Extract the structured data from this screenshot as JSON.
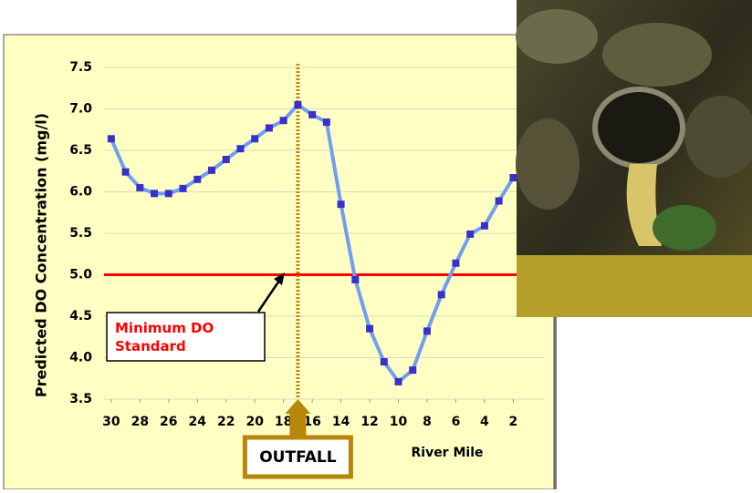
{
  "chart_data": {
    "type": "line",
    "ylabel": "Predicted DO Concentration (mg/l)",
    "xlabel": "River Mile",
    "x": [
      30,
      29,
      28,
      27,
      26,
      25,
      24,
      23,
      22,
      21,
      20,
      19,
      18,
      17,
      16,
      15,
      14,
      13,
      12,
      11,
      10,
      9,
      8,
      7,
      6,
      5,
      4,
      3,
      2
    ],
    "series": [
      {
        "color": "#6f9ff0",
        "marker_color": "#3b2fc9",
        "values": [
          6.64,
          6.24,
          6.05,
          5.98,
          5.98,
          6.04,
          6.15,
          6.26,
          6.39,
          6.52,
          6.64,
          6.77,
          6.86,
          7.05,
          6.93,
          6.84,
          5.85,
          4.94,
          4.35,
          3.95,
          3.71,
          3.85,
          4.32,
          4.76,
          5.14,
          5.49,
          5.59,
          5.89,
          6.17
        ]
      }
    ],
    "xlim": [
      30.5,
      0.5
    ],
    "xticks": [
      30,
      28,
      26,
      24,
      22,
      20,
      18,
      16,
      14,
      12,
      10,
      8,
      6,
      4,
      2
    ],
    "ylim": [
      3.5,
      7.5
    ],
    "yticks": [
      3.5,
      {
        "value": 4,
        "label": "4.0"
      },
      4.5,
      {
        "value": 5,
        "label": "5.0"
      },
      5.5,
      {
        "value": 6,
        "label": "6.0"
      },
      6.5,
      {
        "value": 7,
        "label": "7.0"
      },
      7.5
    ],
    "grid": true,
    "reference_line": {
      "value": 5,
      "label": "Minimum DO Standard",
      "color": "#ff0000"
    },
    "outfall": {
      "x": 17,
      "label": "OUTFALL",
      "color": "#b8860b"
    }
  }
}
